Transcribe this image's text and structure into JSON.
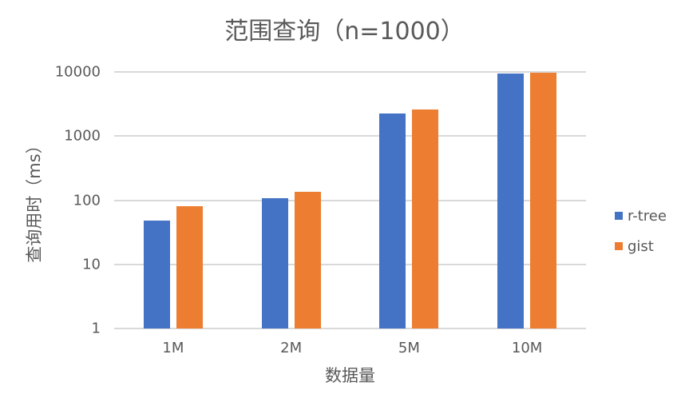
{
  "chart_data": {
    "type": "bar",
    "title": "范围查询（n=1000）",
    "xlabel": "数据量",
    "ylabel": "查询用时（ms）",
    "yscale": "log",
    "ylim": [
      1,
      10000
    ],
    "yticks": [
      "1",
      "10",
      "100",
      "1000",
      "10000"
    ],
    "grid": true,
    "legend_position": "right",
    "categories": [
      "1M",
      "2M",
      "5M",
      "10M"
    ],
    "series": [
      {
        "name": "r-tree",
        "color": "#4472c4",
        "values": [
          48,
          107,
          2230,
          9400
        ]
      },
      {
        "name": "gist",
        "color": "#ed7d31",
        "values": [
          80,
          135,
          2580,
          9600
        ]
      }
    ]
  }
}
